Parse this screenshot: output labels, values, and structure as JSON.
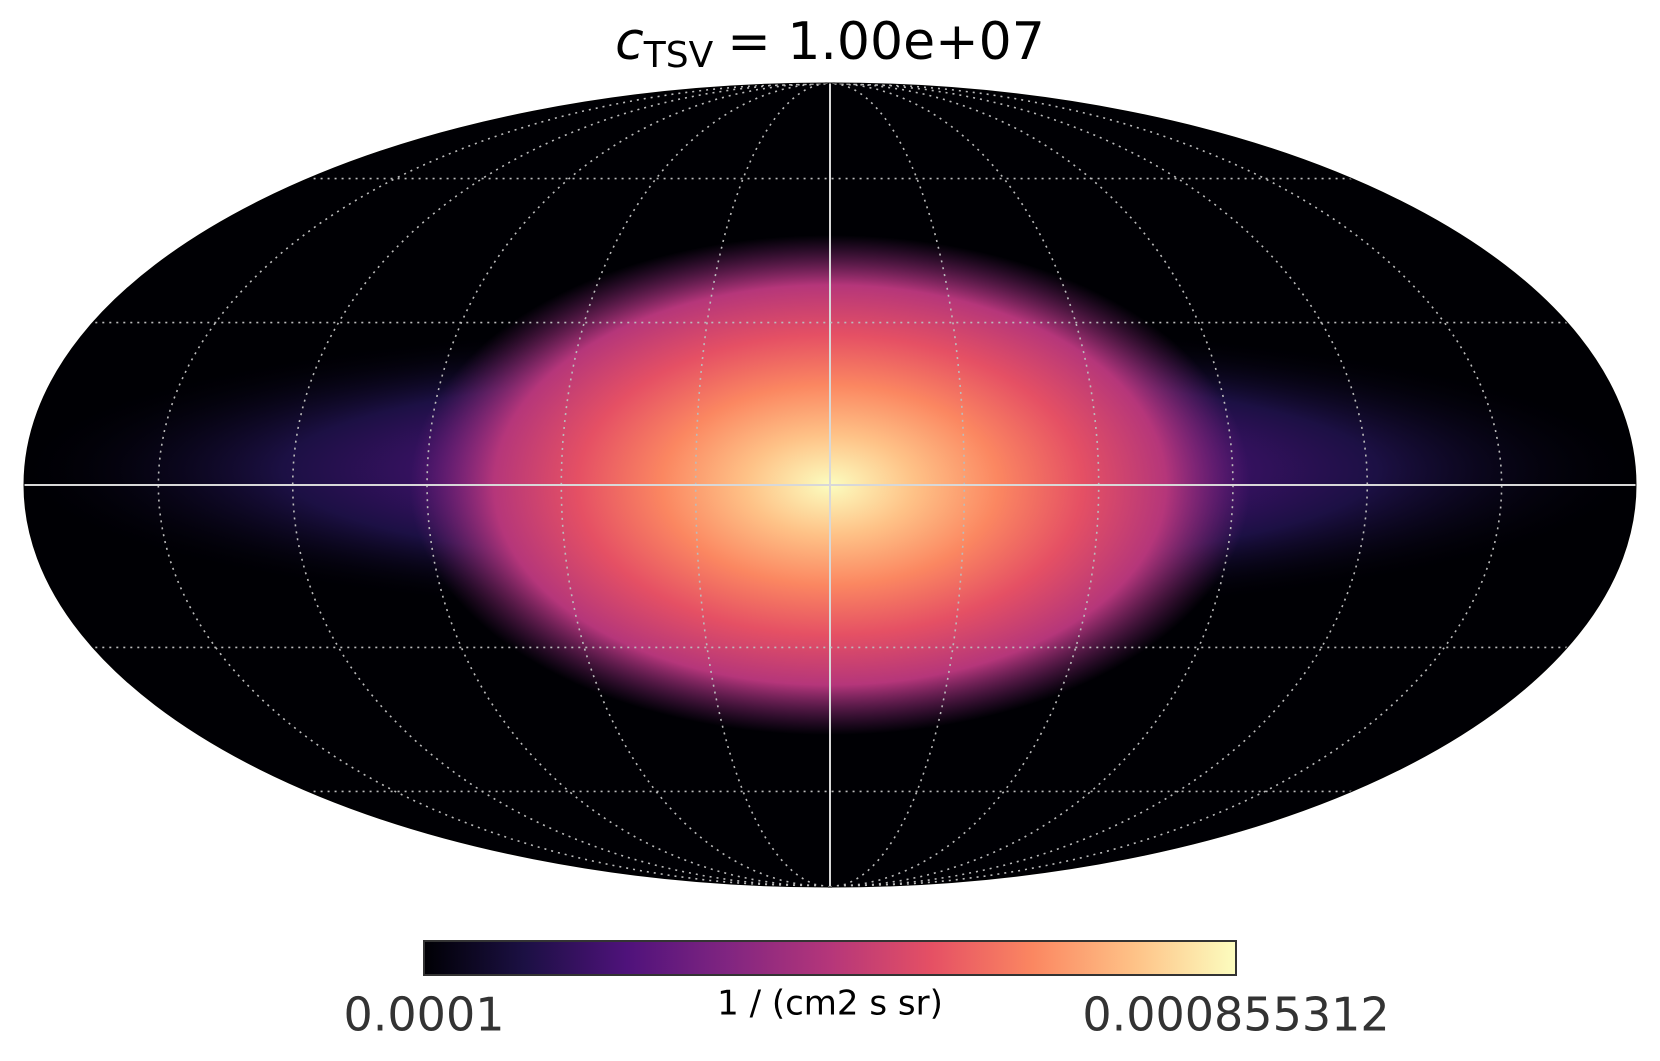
{
  "chart_data": {
    "type": "mollview",
    "title": {
      "symbol": "c",
      "subscript": "TSV",
      "text": "= 1.00e+07"
    },
    "colorbar": {
      "min": 0.0001,
      "max": 0.000855312,
      "unit": "1 / (cm2 s sr)"
    },
    "colormap": [
      "#000004",
      "#1c1044",
      "#4f127b",
      "#812581",
      "#b5367a",
      "#e55064",
      "#fb8761",
      "#fec287",
      "#fcfdbf"
    ],
    "graticule": {
      "dpar": 30,
      "dmer": 30
    }
  }
}
